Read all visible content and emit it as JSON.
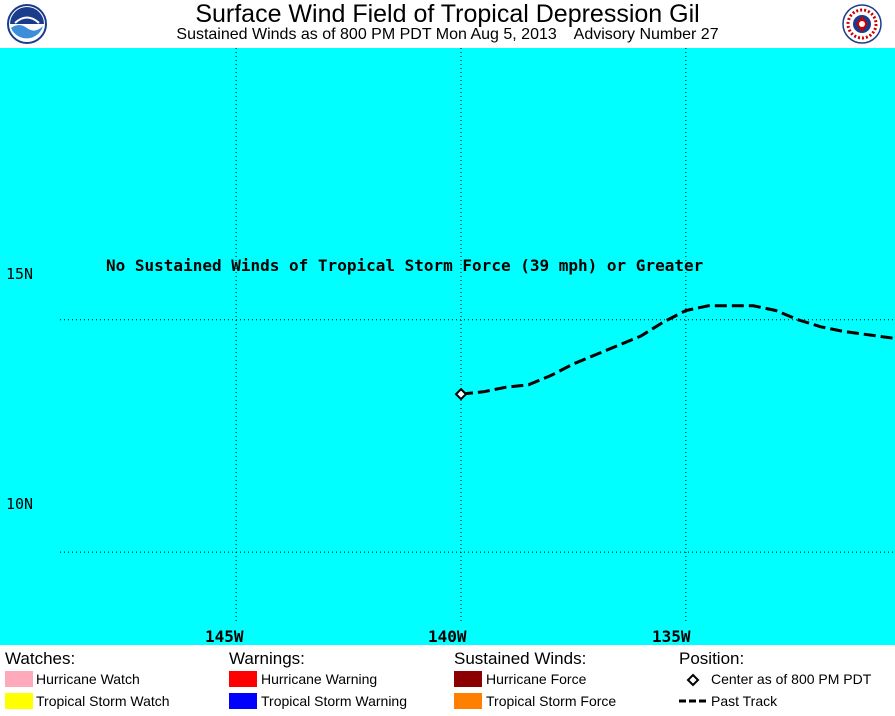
{
  "header": {
    "title": "Surface Wind Field of Tropical Depression Gil",
    "subtitle": "Sustained Winds as of 800 PM PDT Mon Aug 5, 2013    Advisory Number 27",
    "logo_left_text": "NOAA",
    "logo_right_text": "NATIONAL WEATHER SERVICE"
  },
  "map": {
    "background_color": "#00ffff",
    "notice": "No Sustained Winds of Tropical Storm Force (39 mph) or Greater",
    "lat_labels": [
      "15N",
      "10N"
    ],
    "lon_labels": [
      "145W",
      "140W",
      "135W"
    ],
    "latitudes": [
      15,
      10
    ],
    "longitudes": [
      -145,
      -140,
      -135
    ],
    "lon_range": [
      -150.25,
      -130.35
    ],
    "lat_range": [
      8.0,
      20.85
    ],
    "center": {
      "lon": -140.0,
      "lat": 13.4
    },
    "past_track": [
      [
        -140.0,
        13.4
      ],
      [
        -139.5,
        13.45
      ],
      [
        -139.0,
        13.55
      ],
      [
        -138.5,
        13.6
      ],
      [
        -138.0,
        13.8
      ],
      [
        -137.5,
        14.05
      ],
      [
        -137.0,
        14.25
      ],
      [
        -136.5,
        14.45
      ],
      [
        -136.0,
        14.65
      ],
      [
        -135.5,
        14.95
      ],
      [
        -135.0,
        15.2
      ],
      [
        -134.5,
        15.3
      ],
      [
        -134.0,
        15.3
      ],
      [
        -133.5,
        15.3
      ],
      [
        -133.0,
        15.2
      ],
      [
        -132.5,
        15.0
      ],
      [
        -132.0,
        14.85
      ],
      [
        -131.5,
        14.75
      ],
      [
        -130.35,
        14.6
      ]
    ]
  },
  "legend": {
    "watches": {
      "heading": "Watches:",
      "items": [
        {
          "label": "Hurricane Watch",
          "color": "#ffaabb"
        },
        {
          "label": "Tropical Storm Watch",
          "color": "#ffff00"
        }
      ]
    },
    "warnings": {
      "heading": "Warnings:",
      "items": [
        {
          "label": "Hurricane Warning",
          "color": "#ff0000"
        },
        {
          "label": "Tropical Storm Warning",
          "color": "#0000ff"
        }
      ]
    },
    "sustained_winds": {
      "heading": "Sustained Winds:",
      "items": [
        {
          "label": "Hurricane Force",
          "color": "#8b0000"
        },
        {
          "label": "Tropical Storm Force",
          "color": "#ff8000"
        }
      ]
    },
    "position": {
      "heading": "Position:",
      "items": [
        {
          "label": "Center as of 800 PM PDT",
          "icon": "diamond-icon"
        },
        {
          "label": "Past Track",
          "icon": "dashed-line-icon"
        }
      ]
    }
  }
}
